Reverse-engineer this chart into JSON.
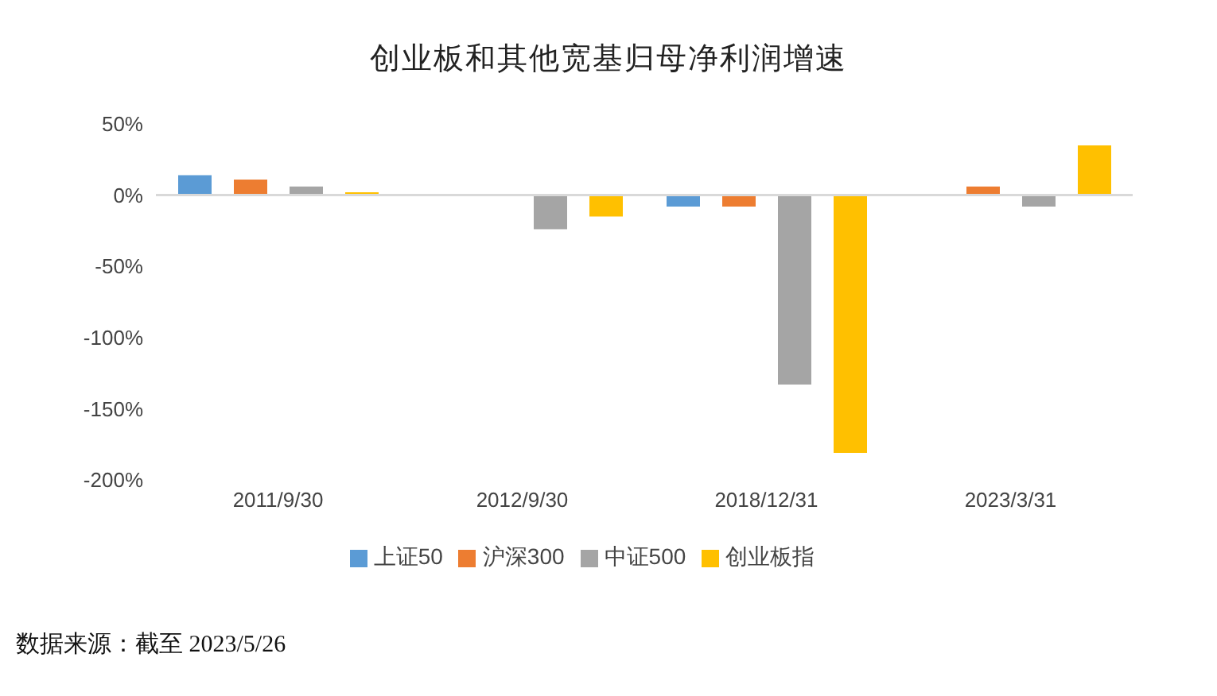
{
  "chart_data": {
    "type": "bar",
    "title": "创业板和其他宽基归母净利润增速",
    "categories": [
      "2011/9/30",
      "2012/9/30",
      "2018/12/31",
      "2023/3/31"
    ],
    "series": [
      {
        "name": "上证50",
        "color": "#5b9bd5",
        "values": [
          14,
          0,
          -8,
          0
        ]
      },
      {
        "name": "沪深300",
        "color": "#ed7d31",
        "values": [
          11,
          0,
          -8,
          6
        ]
      },
      {
        "name": "中证500",
        "color": "#a5a5a5",
        "values": [
          6,
          -24,
          -133,
          -8
        ]
      },
      {
        "name": "创业板指",
        "color": "#ffc000",
        "values": [
          2,
          -15,
          -181,
          35
        ]
      }
    ],
    "ylim": [
      -200,
      50
    ],
    "yticks": [
      {
        "value": -200,
        "label": "-200%"
      },
      {
        "value": -150,
        "label": "-150%"
      },
      {
        "value": -100,
        "label": "-100%"
      },
      {
        "value": -50,
        "label": "-50%"
      },
      {
        "value": 0,
        "label": "0%"
      },
      {
        "value": 50,
        "label": "50%"
      }
    ],
    "ref_lines": [
      {
        "axis": "y",
        "value": 0,
        "color": "#d9d9d9"
      }
    ],
    "grid": false,
    "legend": "bottom",
    "annotations": [
      "数据来源：截至 2023/5/26"
    ]
  }
}
